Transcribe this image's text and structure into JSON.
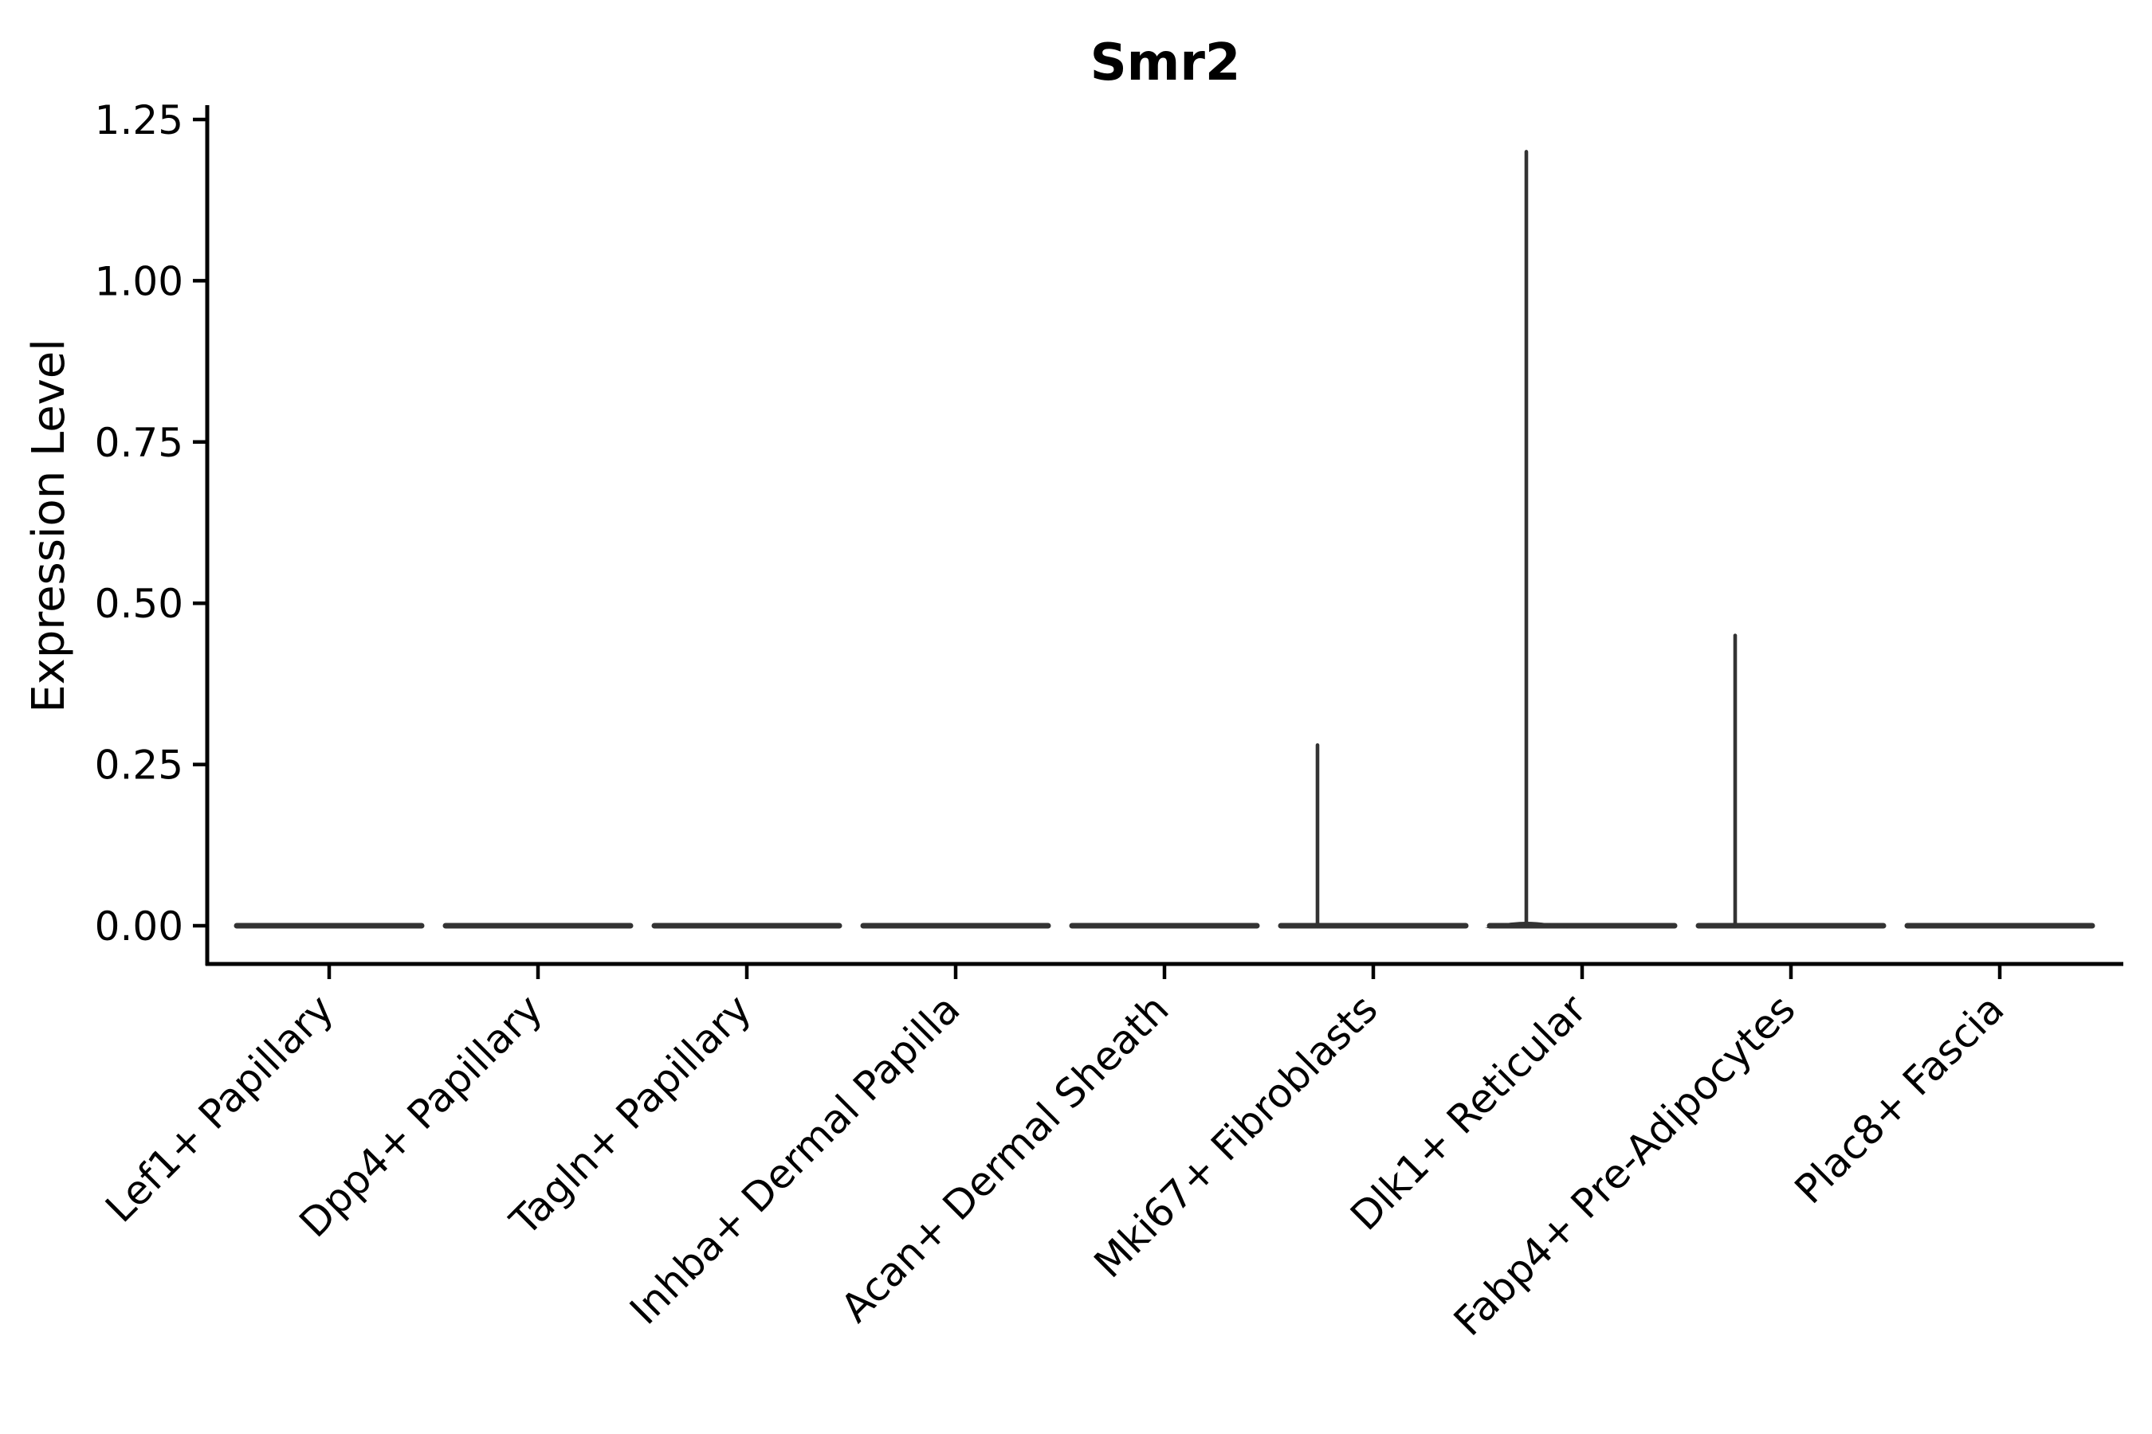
{
  "chart_data": {
    "type": "violin",
    "title": "Smr2",
    "ylabel": "Expression Level",
    "categories": [
      "Lef1+ Papillary",
      "Dpp4+ Papillary",
      "Tagln+ Papillary",
      "Inhba+ Dermal Papilla",
      "Acan+ Dermal Sheath",
      "Mki67+ Fibroblasts",
      "Dlk1+ Reticular",
      "Fabp4+ Pre-Adipocytes",
      "Plac8+ Fascia"
    ],
    "series": [
      {
        "name": "violin_baseline",
        "values": [
          0,
          0,
          0,
          0,
          0,
          0,
          0,
          0,
          0
        ]
      },
      {
        "name": "violin_peak_expression",
        "values": [
          0,
          0,
          0,
          0,
          0,
          0.28,
          1.2,
          0.45,
          0
        ]
      }
    ],
    "yticks": [
      "0.00",
      "0.25",
      "0.50",
      "0.75",
      "1.00",
      "1.25"
    ],
    "ylim": [
      -0.06,
      1.27
    ],
    "xtick_rotation_deg": 45,
    "grid": false,
    "legend": false,
    "colors": {
      "violin": "#333333",
      "axis": "#000000",
      "text": "#000000",
      "background": "#ffffff"
    }
  }
}
